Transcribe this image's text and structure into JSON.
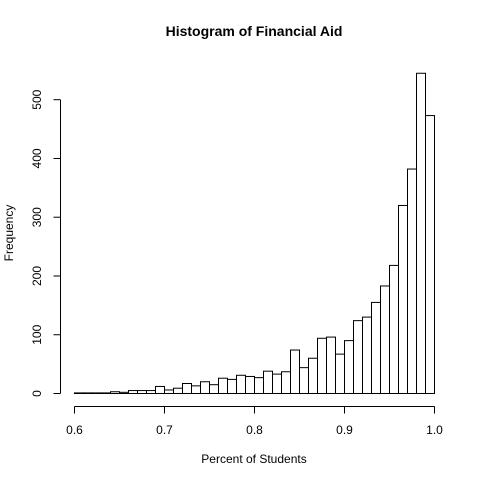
{
  "chart_data": {
    "type": "bar",
    "title": "Histogram of Financial Aid",
    "xlabel": "Percent of Students",
    "ylabel": "Frequency",
    "xlim": [
      0.6,
      1.0
    ],
    "ylim": [
      0,
      550
    ],
    "x_ticks": [
      "0.6",
      "0.7",
      "0.8",
      "0.9",
      "1.0"
    ],
    "x_tick_values": [
      0.6,
      0.7,
      0.8,
      0.9,
      1.0
    ],
    "y_ticks": [
      "0",
      "100",
      "200",
      "300",
      "400",
      "500"
    ],
    "y_tick_values": [
      0,
      100,
      200,
      300,
      400,
      500
    ],
    "bin_width": 0.01,
    "bins_start": [
      0.6,
      0.61,
      0.62,
      0.63,
      0.64,
      0.65,
      0.66,
      0.67,
      0.68,
      0.69,
      0.7,
      0.71,
      0.72,
      0.73,
      0.74,
      0.75,
      0.76,
      0.77,
      0.78,
      0.79,
      0.8,
      0.81,
      0.82,
      0.83,
      0.84,
      0.85,
      0.86,
      0.87,
      0.88,
      0.89,
      0.9,
      0.91,
      0.92,
      0.93,
      0.94,
      0.95,
      0.96,
      0.97,
      0.98,
      0.99
    ],
    "values": [
      1,
      1,
      1,
      1,
      3,
      2,
      5,
      5,
      5,
      12,
      6,
      9,
      17,
      13,
      20,
      15,
      26,
      24,
      31,
      29,
      27,
      38,
      33,
      37,
      74,
      44,
      60,
      94,
      96,
      67,
      90,
      124,
      130,
      155,
      183,
      218,
      320,
      382,
      545,
      473
    ],
    "grid": false,
    "legend": "none"
  }
}
